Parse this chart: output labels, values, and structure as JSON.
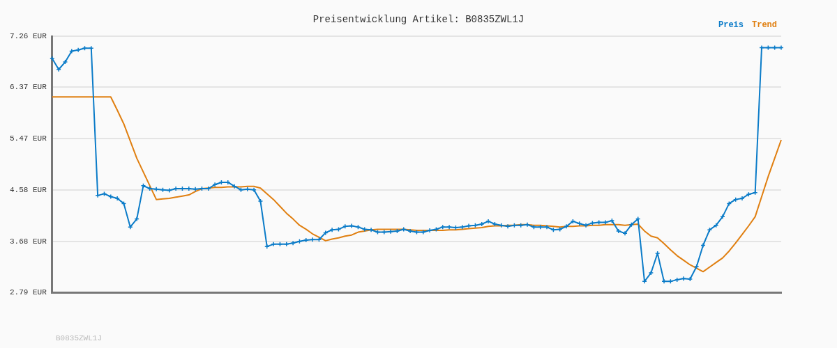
{
  "chart_data": {
    "type": "line",
    "title": "Preisentwicklung Artikel: B0835ZWL1J",
    "categories": [
      null,
      null,
      null,
      null,
      null,
      null,
      null,
      null,
      null,
      null,
      null,
      null,
      null,
      null,
      null,
      null,
      null,
      null,
      null,
      null,
      null,
      null,
      null,
      null,
      null,
      null,
      null,
      null,
      null,
      null,
      null,
      null,
      null,
      null,
      null,
      null,
      null,
      null,
      null,
      null,
      null,
      null,
      null,
      null,
      null,
      null,
      null,
      null,
      null,
      null,
      null,
      null,
      null,
      null,
      null,
      null,
      null,
      null,
      null,
      null,
      null,
      null,
      null,
      null,
      null,
      null,
      null,
      null,
      null,
      null,
      null,
      null,
      null,
      null,
      null,
      null,
      null,
      null,
      null,
      null,
      null,
      null,
      null,
      null,
      null,
      null,
      null,
      null,
      null,
      null,
      null,
      null,
      null,
      null,
      null,
      null,
      null,
      null,
      null,
      null,
      null,
      null,
      null,
      null,
      null,
      null,
      null,
      null,
      null,
      null,
      null,
      null,
      null
    ],
    "series": [
      {
        "name": "Preis",
        "color": "#0a7bc8",
        "marker": "cross",
        "values": [
          6.87,
          6.68,
          6.81,
          7.0,
          7.02,
          7.05,
          7.05,
          4.48,
          4.51,
          4.46,
          4.43,
          4.34,
          3.93,
          4.07,
          4.65,
          4.6,
          4.59,
          4.58,
          4.57,
          4.6,
          4.6,
          4.6,
          4.59,
          4.6,
          4.6,
          4.67,
          4.71,
          4.71,
          4.64,
          4.58,
          4.59,
          4.58,
          4.38,
          3.59,
          3.63,
          3.63,
          3.63,
          3.65,
          3.68,
          3.7,
          3.71,
          3.71,
          3.83,
          3.88,
          3.89,
          3.94,
          3.95,
          3.93,
          3.89,
          3.88,
          3.84,
          3.84,
          3.85,
          3.86,
          3.89,
          3.86,
          3.84,
          3.84,
          3.87,
          3.89,
          3.93,
          3.93,
          3.92,
          3.93,
          3.95,
          3.96,
          3.98,
          4.03,
          3.98,
          3.96,
          3.94,
          3.96,
          3.96,
          3.97,
          3.93,
          3.93,
          3.93,
          3.88,
          3.89,
          3.94,
          4.03,
          3.99,
          3.96,
          4.0,
          4.01,
          4.01,
          4.04,
          3.86,
          3.82,
          3.97,
          4.07,
          2.98,
          3.13,
          3.47,
          2.98,
          2.98,
          3.01,
          3.03,
          3.02,
          3.24,
          3.61,
          3.88,
          3.96,
          4.11,
          4.34,
          4.41,
          4.43,
          4.5,
          4.53,
          7.06,
          7.06,
          7.06,
          7.06
        ]
      },
      {
        "name": "Trend",
        "color": "#e07f10",
        "values": [
          6.2,
          6.2,
          6.2,
          6.2,
          6.2,
          6.2,
          6.2,
          6.2,
          6.2,
          6.2,
          5.97,
          5.73,
          5.43,
          5.13,
          4.89,
          4.65,
          4.41,
          4.42,
          4.43,
          4.45,
          4.47,
          4.49,
          4.55,
          4.6,
          4.61,
          4.62,
          4.62,
          4.63,
          4.63,
          4.63,
          4.64,
          4.64,
          4.61,
          4.51,
          4.41,
          4.29,
          4.17,
          4.07,
          3.96,
          3.89,
          3.81,
          3.75,
          3.69,
          3.72,
          3.74,
          3.77,
          3.79,
          3.84,
          3.86,
          3.88,
          3.89,
          3.89,
          3.89,
          3.89,
          3.89,
          3.88,
          3.87,
          3.87,
          3.87,
          3.87,
          3.87,
          3.88,
          3.88,
          3.89,
          3.9,
          3.91,
          3.92,
          3.94,
          3.95,
          3.95,
          3.96,
          3.96,
          3.97,
          3.97,
          3.96,
          3.96,
          3.95,
          3.94,
          3.93,
          3.94,
          3.94,
          3.95,
          3.95,
          3.96,
          3.96,
          3.97,
          3.97,
          3.97,
          3.96,
          3.97,
          3.98,
          3.86,
          3.77,
          3.74,
          3.64,
          3.53,
          3.43,
          3.35,
          3.27,
          3.21,
          3.15,
          3.23,
          3.31,
          3.39,
          3.51,
          3.65,
          3.8,
          3.95,
          4.11,
          4.46,
          4.81,
          5.13,
          5.45
        ]
      }
    ],
    "ylim": [
      2.79,
      7.26
    ],
    "yticks": [
      {
        "value": 2.79,
        "label": "2.79 EUR"
      },
      {
        "value": 3.68,
        "label": "3.68 EUR"
      },
      {
        "value": 4.58,
        "label": "4.58 EUR"
      },
      {
        "value": 5.47,
        "label": "5.47 EUR"
      },
      {
        "value": 6.37,
        "label": "6.37 EUR"
      },
      {
        "value": 7.26,
        "label": "7.26 EUR"
      }
    ],
    "grid": "y",
    "legend": "top right",
    "tick_labels": "y",
    "annotations": [
      "B0835ZWL1J"
    ]
  }
}
